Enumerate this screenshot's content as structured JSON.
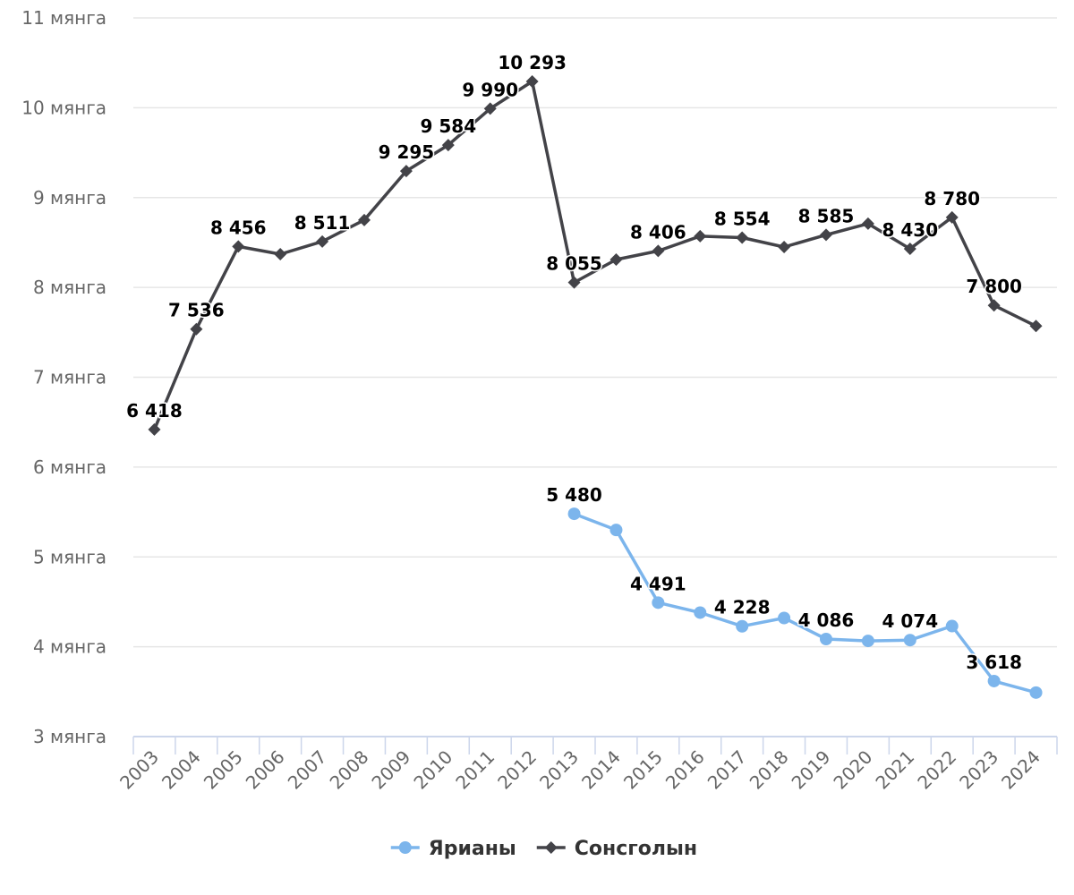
{
  "chart_data": {
    "type": "line",
    "title": "",
    "xlabel": "",
    "ylabel": "",
    "categories": [
      "2003",
      "2004",
      "2005",
      "2006",
      "2007",
      "2008",
      "2009",
      "2010",
      "2011",
      "2012",
      "2013",
      "2014",
      "2015",
      "2016",
      "2017",
      "2018",
      "2019",
      "2020",
      "2021",
      "2022",
      "2023",
      "2024"
    ],
    "ylim": [
      3000,
      11000
    ],
    "yticks": [
      {
        "value": 3000,
        "label": "3 мянга"
      },
      {
        "value": 4000,
        "label": "4 мянга"
      },
      {
        "value": 5000,
        "label": "5 мянга"
      },
      {
        "value": 6000,
        "label": "6 мянга"
      },
      {
        "value": 7000,
        "label": "7 мянга"
      },
      {
        "value": 8000,
        "label": "8 мянга"
      },
      {
        "value": 9000,
        "label": "9 мянга"
      },
      {
        "value": 10000,
        "label": "10 мянга"
      },
      {
        "value": 11000,
        "label": "11 мянга"
      }
    ],
    "grid": true,
    "legend_position": "bottom-center",
    "series": [
      {
        "name": "Ярианы",
        "color": "#7cb5ec",
        "marker": "circle",
        "values": [
          null,
          null,
          null,
          null,
          null,
          null,
          null,
          null,
          null,
          null,
          5480,
          5300,
          4491,
          4380,
          4228,
          4320,
          4086,
          4065,
          4074,
          4230,
          3618,
          3490
        ],
        "labels": [
          null,
          null,
          null,
          null,
          null,
          null,
          null,
          null,
          null,
          null,
          "5 480",
          null,
          "4 491",
          null,
          "4 228",
          null,
          "4 086",
          null,
          "4 074",
          null,
          "3 618",
          null
        ]
      },
      {
        "name": "Сонсголын",
        "color": "#434348",
        "marker": "diamond",
        "values": [
          6418,
          7536,
          8456,
          8370,
          8511,
          8750,
          9295,
          9584,
          9990,
          10293,
          8055,
          8310,
          8406,
          8570,
          8554,
          8450,
          8585,
          8710,
          8430,
          8780,
          7800,
          7570
        ],
        "labels": [
          "6 418",
          "7 536",
          "8 456",
          null,
          "8 511",
          null,
          "9 295",
          "9 584",
          "9 990",
          "10 293",
          "8 055",
          null,
          "8 406",
          null,
          "8 554",
          null,
          "8 585",
          null,
          "8 430",
          "8 780",
          "7 800",
          null
        ]
      }
    ]
  }
}
